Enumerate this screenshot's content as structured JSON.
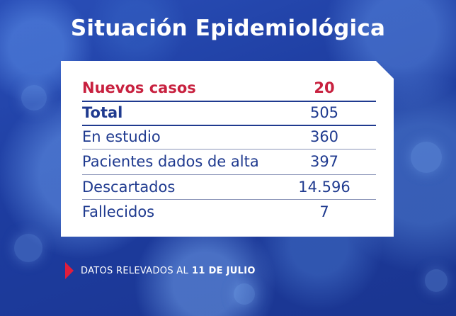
{
  "title": "Situación Epidemiológica",
  "rows": [
    {
      "label": "Nuevos casos",
      "value": "20"
    },
    {
      "label": "Total",
      "value": "505"
    },
    {
      "label": "En estudio",
      "value": "360"
    },
    {
      "label": "Pacientes dados de alta",
      "value": "397"
    },
    {
      "label": "Descartados",
      "value": "14.596"
    },
    {
      "label": "Fallecidos",
      "value": "7"
    }
  ],
  "footer": {
    "text": "DATOS RELEVADOS AL",
    "date": "11 DE JULIO"
  },
  "colors": {
    "background": "#1c3a9e",
    "highlight": "#c8213f",
    "text": "#1f3a8f",
    "arrow": "#e11d3c"
  },
  "icons": {
    "footer_marker": "red-triangle-icon"
  }
}
